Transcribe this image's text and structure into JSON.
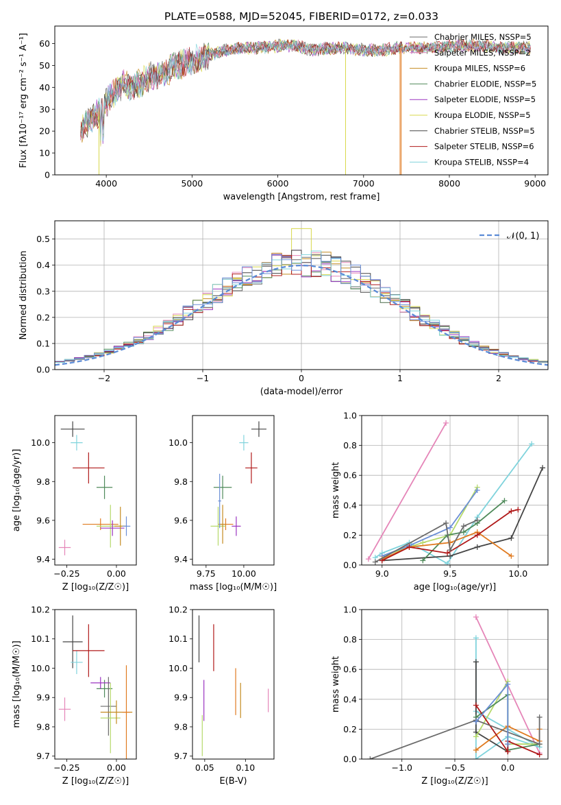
{
  "title": "PLATE=0588, MJD=52045, FIBERID=0172, z=0.033",
  "colors": [
    "#6a6a6a",
    "#e585b8",
    "#c48a1f",
    "#4f8a5a",
    "#9a33c0",
    "#d7d74a",
    "#444444",
    "#b01818",
    "#7fd3dc",
    "#6b8ed6",
    "#e07a1f",
    "#b6d96a"
  ],
  "chart_data": [
    {
      "type": "line",
      "name": "spectrum",
      "xlabel": "wavelength [Angstrom, rest frame]",
      "ylabel": "Flux [fλ10⁻¹⁷ erg cm⁻² s⁻¹ A⁻¹]",
      "xlim": [
        3400,
        9150
      ],
      "ylim": [
        0,
        68
      ],
      "xticks": [
        "4000",
        "5000",
        "6000",
        "7000",
        "8000",
        "9000"
      ],
      "yticks": [
        "0",
        "10",
        "20",
        "30",
        "40",
        "50",
        "60"
      ],
      "continuum": {
        "x": [
          3700,
          3800,
          3900,
          4000,
          4100,
          4200,
          4300,
          4400,
          4500,
          4600,
          4700,
          4800,
          5000,
          5200,
          5400,
          5600,
          5800,
          6000,
          6200,
          6400,
          6600,
          6800,
          7000,
          7200,
          7400,
          7600,
          7800,
          8000,
          8200,
          8400,
          8600,
          8800,
          8950
        ],
        "y": [
          20,
          25,
          28,
          33,
          38,
          42,
          40,
          42,
          45,
          45,
          47,
          50,
          52,
          55,
          57,
          58,
          58,
          59,
          59,
          57,
          58,
          58,
          57,
          57,
          58,
          58,
          58,
          59,
          59,
          59,
          58,
          58,
          58
        ]
      },
      "legend": [
        "Chabrier MILES, N_SSP=5",
        "Salpeter MILES, N_SSP=2",
        "Kroupa MILES, N_SSP=6",
        "Chabrier ELODIE, N_SSP=5",
        "Salpeter ELODIE, N_SSP=5",
        "Kroupa ELODIE, N_SSP=5",
        "Chabrier STELIB, N_SSP=5",
        "Salpeter STELIB, N_SSP=6",
        "Kroupa STELIB, N_SSP=4"
      ],
      "legend_placement": "right"
    },
    {
      "type": "histogram",
      "name": "residuals",
      "xlabel": "(data-model)/error",
      "ylabel": "Normed distribution",
      "xlim": [
        -2.5,
        2.5
      ],
      "ylim": [
        0,
        0.57
      ],
      "xticks": [
        "−2",
        "−1",
        "0",
        "1",
        "2"
      ],
      "yticks": [
        "0.0",
        "0.1",
        "0.2",
        "0.3",
        "0.4",
        "0.5"
      ],
      "legend": "𝒩(0, 1)",
      "bin_width": 0.1,
      "grid": true
    },
    {
      "type": "scatter",
      "name": "age-vs-Z",
      "xlabel": "Z [log₁₀(Z/Z☉)]",
      "ylabel": "age [log₁₀(age/yr)]",
      "xlim": [
        -0.31,
        0.1
      ],
      "ylim": [
        9.37,
        10.14
      ],
      "xticks": [
        "−0.25",
        "0.00"
      ],
      "yticks": [
        "9.4",
        "9.6",
        "9.8",
        "10.0"
      ],
      "points": [
        {
          "x": -0.22,
          "y": 10.07,
          "xerr": 0.06,
          "yerr": 0.04,
          "c": 6
        },
        {
          "x": -0.2,
          "y": 10.0,
          "xerr": 0.03,
          "yerr": 0.04,
          "c": 8
        },
        {
          "x": -0.14,
          "y": 9.87,
          "xerr": 0.08,
          "yerr": 0.08,
          "c": 7
        },
        {
          "x": -0.06,
          "y": 9.77,
          "xerr": 0.04,
          "yerr": 0.06,
          "c": 3
        },
        {
          "x": -0.08,
          "y": 9.58,
          "xerr": 0.09,
          "yerr": 0.03,
          "c": 10
        },
        {
          "x": -0.03,
          "y": 9.57,
          "xerr": 0.07,
          "yerr": 0.11,
          "c": 11
        },
        {
          "x": -0.02,
          "y": 9.56,
          "xerr": 0.06,
          "yerr": 0.04,
          "c": 4
        },
        {
          "x": 0.02,
          "y": 9.57,
          "xerr": 0.03,
          "yerr": 0.1,
          "c": 2
        },
        {
          "x": 0.05,
          "y": 9.57,
          "xerr": 0.02,
          "yerr": 0.05,
          "c": 9
        },
        {
          "x": -0.26,
          "y": 9.46,
          "xerr": 0.03,
          "yerr": 0.04,
          "c": 1
        }
      ]
    },
    {
      "type": "scatter",
      "name": "age-vs-mass",
      "xlabel": "mass [log₁₀(M/M☉)]",
      "ylabel": "",
      "xlim": [
        9.66,
        10.2
      ],
      "ylim": [
        9.37,
        10.14
      ],
      "xticks": [
        "9.75",
        "10.00"
      ],
      "yticks": [
        "9.4",
        "9.6",
        "9.8",
        "10.0"
      ],
      "points": [
        {
          "x": 10.1,
          "y": 10.07,
          "xerr": 0.05,
          "yerr": 0.04,
          "c": 6
        },
        {
          "x": 10.0,
          "y": 10.0,
          "xerr": 0.03,
          "yerr": 0.04,
          "c": 8
        },
        {
          "x": 10.05,
          "y": 9.87,
          "xerr": 0.04,
          "yerr": 0.08,
          "c": 7
        },
        {
          "x": 9.86,
          "y": 9.77,
          "xerr": 0.06,
          "yerr": 0.06,
          "c": 3
        },
        {
          "x": 9.88,
          "y": 9.58,
          "xerr": 0.05,
          "yerr": 0.03,
          "c": 10
        },
        {
          "x": 9.83,
          "y": 9.57,
          "xerr": 0.05,
          "yerr": 0.1,
          "c": 11
        },
        {
          "x": 9.95,
          "y": 9.57,
          "xerr": 0.03,
          "yerr": 0.05,
          "c": 4
        },
        {
          "x": 9.86,
          "y": 9.58,
          "xerr": 0.02,
          "yerr": 0.1,
          "c": 2
        },
        {
          "x": 9.84,
          "y": 9.7,
          "xerr": 0.01,
          "yerr": 0.14,
          "c": 9
        }
      ]
    },
    {
      "type": "line",
      "name": "mass-weight-vs-age",
      "xlabel": "age [log₁₀(age/yr)]",
      "ylabel": "mass weight",
      "xlim": [
        8.85,
        10.22
      ],
      "ylim": [
        0,
        1.0
      ],
      "xticks": [
        "9.0",
        "9.5",
        "10.0"
      ],
      "yticks": [
        "0.0",
        "0.2",
        "0.4",
        "0.6",
        "0.8",
        "1.0"
      ],
      "series": [
        {
          "c": 1,
          "x": [
            8.9,
            9.47
          ],
          "y": [
            0.04,
            0.95
          ]
        },
        {
          "c": 8,
          "x": [
            8.95,
            9.0,
            9.2,
            9.48,
            9.7,
            10.1
          ],
          "y": [
            0.05,
            0.08,
            0.15,
            0.01,
            0.32,
            0.81
          ]
        },
        {
          "c": 6,
          "x": [
            9.0,
            9.5,
            9.7,
            9.95,
            10.18
          ],
          "y": [
            0.03,
            0.06,
            0.12,
            0.18,
            0.65
          ]
        },
        {
          "c": 11,
          "x": [
            9.0,
            9.3,
            9.5,
            9.7
          ],
          "y": [
            0.06,
            0.15,
            0.2,
            0.52
          ]
        },
        {
          "c": 9,
          "x": [
            9.0,
            9.2,
            9.5,
            9.7
          ],
          "y": [
            0.06,
            0.13,
            0.25,
            0.5
          ]
        },
        {
          "c": 3,
          "x": [
            9.3,
            9.48,
            9.6,
            9.7,
            9.9
          ],
          "y": [
            0.03,
            0.2,
            0.22,
            0.28,
            0.43
          ]
        },
        {
          "c": 10,
          "x": [
            9.0,
            9.2,
            9.5,
            9.7,
            9.95
          ],
          "y": [
            0.04,
            0.12,
            0.15,
            0.22,
            0.06
          ]
        },
        {
          "c": 7,
          "x": [
            9.0,
            9.2,
            9.48,
            9.7,
            9.95,
            10.0
          ],
          "y": [
            0.03,
            0.12,
            0.08,
            0.2,
            0.36,
            0.37
          ]
        },
        {
          "c": 0,
          "x": [
            8.95,
            9.47,
            9.5,
            9.6,
            9.7
          ],
          "y": [
            0.02,
            0.28,
            0.1,
            0.26,
            0.3
          ]
        }
      ]
    },
    {
      "type": "scatter",
      "name": "mass-vs-Z",
      "xlabel": "Z [log₁₀(Z/Z☉)]",
      "ylabel": "mass [log₁₀(M/M☉)]",
      "xlim": [
        -0.31,
        0.1
      ],
      "ylim": [
        9.69,
        10.2
      ],
      "xticks": [
        "−0.25",
        "0.00"
      ],
      "yticks": [
        "9.7",
        "9.8",
        "9.9",
        "10.0",
        "10.1",
        "10.2"
      ],
      "points": [
        {
          "x": -0.22,
          "y": 10.09,
          "xerr": 0.05,
          "yerr": 0.09,
          "c": 6
        },
        {
          "x": -0.2,
          "y": 10.02,
          "xerr": 0.03,
          "yerr": 0.04,
          "c": 8
        },
        {
          "x": -0.14,
          "y": 10.06,
          "xerr": 0.08,
          "yerr": 0.09,
          "c": 7
        },
        {
          "x": -0.06,
          "y": 9.93,
          "xerr": 0.04,
          "yerr": 0.03,
          "c": 3
        },
        {
          "x": -0.08,
          "y": 9.95,
          "xerr": 0.05,
          "yerr": 0.02,
          "c": 4
        },
        {
          "x": -0.04,
          "y": 9.87,
          "xerr": 0.04,
          "yerr": 0.1,
          "c": 0
        },
        {
          "x": -0.03,
          "y": 9.83,
          "xerr": 0.05,
          "yerr": 0.12,
          "c": 11
        },
        {
          "x": 0.0,
          "y": 9.85,
          "xerr": 0.08,
          "yerr": 0.04,
          "c": 2
        },
        {
          "x": 0.05,
          "y": 9.85,
          "xerr": 0.02,
          "yerr": 0.16,
          "c": 10
        },
        {
          "x": -0.26,
          "y": 9.86,
          "xerr": 0.03,
          "yerr": 0.04,
          "c": 1
        }
      ]
    },
    {
      "type": "scatter",
      "name": "mass-vs-EBV",
      "xlabel": "E(B-V)",
      "ylabel": "",
      "xlim": [
        0.035,
        0.135
      ],
      "ylim": [
        9.69,
        10.2
      ],
      "xticks": [
        "0.05",
        "0.10"
      ],
      "yticks": [
        "9.7",
        "9.8",
        "9.9",
        "10.0",
        "10.1",
        "10.2"
      ],
      "points": [
        {
          "x": 0.043,
          "y": 10.1,
          "yerr": 0.08,
          "c": 6
        },
        {
          "x": 0.061,
          "y": 10.07,
          "yerr": 0.08,
          "c": 7
        },
        {
          "x": 0.049,
          "y": 9.89,
          "yerr": 0.07,
          "c": 4
        },
        {
          "x": 0.047,
          "y": 9.77,
          "yerr": 0.07,
          "c": 11
        },
        {
          "x": 0.088,
          "y": 9.92,
          "yerr": 0.08,
          "c": 10
        },
        {
          "x": 0.094,
          "y": 9.89,
          "yerr": 0.06,
          "c": 2
        },
        {
          "x": 0.128,
          "y": 9.89,
          "yerr": 0.04,
          "c": 1
        }
      ]
    },
    {
      "type": "line",
      "name": "mass-weight-vs-Z",
      "xlabel": "Z [log₁₀(Z/Z☉)]",
      "ylabel": "mass weight",
      "xlim": [
        -1.38,
        0.38
      ],
      "ylim": [
        0,
        1.0
      ],
      "xticks": [
        "−1.0",
        "−0.5",
        "0.0"
      ],
      "yticks": [
        "0.0",
        "0.2",
        "0.4",
        "0.6",
        "0.8",
        "1.0"
      ],
      "series": [
        {
          "c": 1,
          "x": [
            -0.3,
            0.3
          ],
          "y": [
            0.95,
            0.04
          ]
        },
        {
          "c": 8,
          "x": [
            -0.3,
            -0.3,
            0.0,
            0.3,
            -0.3
          ],
          "y": [
            0.81,
            0.0,
            0.15,
            0.08,
            0.32
          ]
        },
        {
          "c": 6,
          "x": [
            -0.3,
            -0.3,
            0.0,
            0.0
          ],
          "y": [
            0.65,
            0.18,
            0.05,
            0.1
          ]
        },
        {
          "c": 11,
          "x": [
            -0.3,
            0.0,
            0.0,
            0.3
          ],
          "y": [
            0.15,
            0.52,
            0.1,
            0.1
          ]
        },
        {
          "c": 3,
          "x": [
            -0.3,
            0.0,
            0.0,
            0.3
          ],
          "y": [
            0.28,
            0.43,
            0.06,
            0.1
          ]
        },
        {
          "c": 10,
          "x": [
            -0.3,
            0.0,
            0.3,
            0.3
          ],
          "y": [
            0.06,
            0.22,
            0.12,
            0.2
          ]
        },
        {
          "c": 7,
          "x": [
            -0.3,
            0.0,
            0.0,
            0.3
          ],
          "y": [
            0.36,
            0.05,
            0.12,
            0.03
          ]
        },
        {
          "c": 0,
          "x": [
            -1.3,
            -0.3,
            0.3,
            0.3
          ],
          "y": [
            0.0,
            0.26,
            0.1,
            0.28
          ]
        },
        {
          "c": 9,
          "x": [
            -0.3,
            0.0,
            0.0
          ],
          "y": [
            0.25,
            0.5,
            0.1
          ]
        }
      ]
    }
  ]
}
